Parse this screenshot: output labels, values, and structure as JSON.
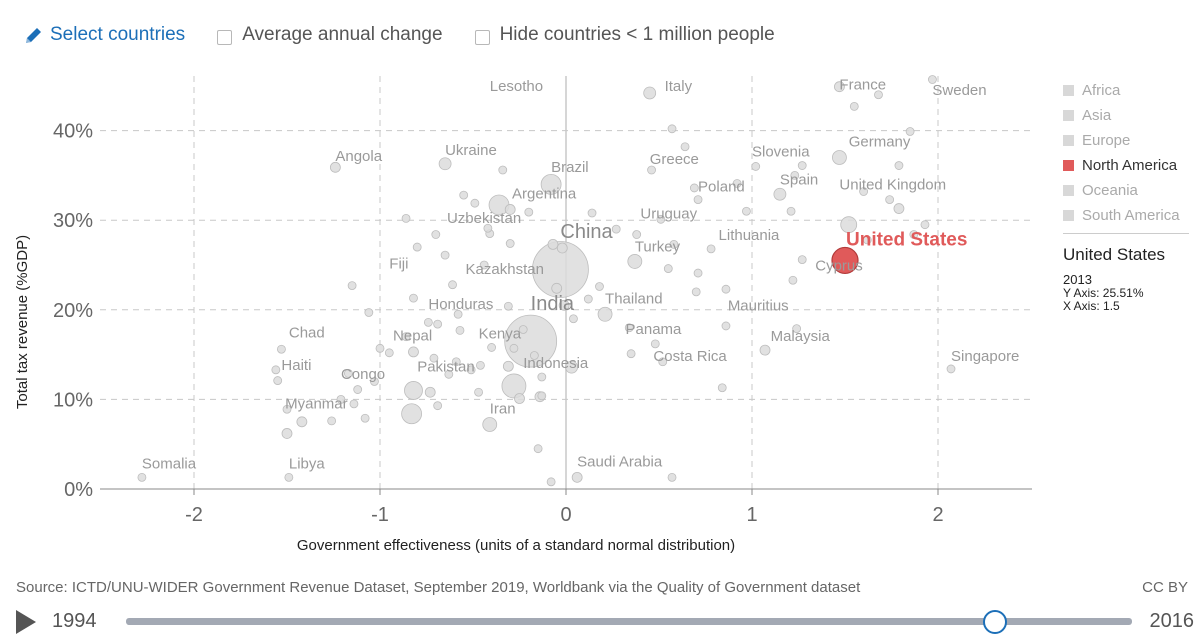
{
  "controls": {
    "select_countries": "Select countries",
    "avg_change": "Average annual change",
    "hide_small": "Hide countries < 1 million people"
  },
  "chart_data": {
    "type": "scatter",
    "xlabel": "Government effectiveness (units of a standard normal distribution)",
    "ylabel": "Total tax revenue (%GDP)",
    "xlim": [
      -2.5,
      2.5
    ],
    "ylim": [
      0,
      46
    ],
    "xticks": [
      -2,
      -1,
      0,
      1,
      2
    ],
    "xtick_labels": [
      "-2",
      "-1",
      "0",
      "1",
      "2"
    ],
    "yticks": [
      0,
      10,
      20,
      30,
      40
    ],
    "ytick_labels": [
      "0%",
      "10%",
      "20%",
      "30%",
      "40%"
    ],
    "highlight": {
      "name": "United States",
      "x": 1.5,
      "y": 25.51,
      "r": 13,
      "color": "#e05a5a"
    },
    "labels": [
      {
        "t": "Lesotho",
        "x": -0.41,
        "y": 44.4
      },
      {
        "t": "Italy",
        "x": 0.53,
        "y": 44.4
      },
      {
        "t": "France",
        "x": 1.47,
        "y": 44.6
      },
      {
        "t": "Sweden",
        "x": 1.97,
        "y": 44.0
      },
      {
        "t": "Germany",
        "x": 1.52,
        "y": 38.2
      },
      {
        "t": "Angola",
        "x": -1.24,
        "y": 36.6
      },
      {
        "t": "Ukraine",
        "x": -0.65,
        "y": 37.3
      },
      {
        "t": "Greece",
        "x": 0.45,
        "y": 36.3
      },
      {
        "t": "Slovenia",
        "x": 1.0,
        "y": 37.1
      },
      {
        "t": "Brazil",
        "x": -0.08,
        "y": 35.4
      },
      {
        "t": "Spain",
        "x": 1.15,
        "y": 34.0
      },
      {
        "t": "United Kingdom",
        "x": 1.47,
        "y": 33.4
      },
      {
        "t": "Poland",
        "x": 0.71,
        "y": 33.2
      },
      {
        "t": "Argentina",
        "x": -0.29,
        "y": 32.4
      },
      {
        "t": "Uruguay",
        "x": 0.4,
        "y": 30.2
      },
      {
        "t": "Uzbekistan",
        "x": -0.64,
        "y": 29.7
      },
      {
        "t": "China",
        "x": -0.03,
        "y": 28.0
      },
      {
        "t": "Lithuania",
        "x": 0.82,
        "y": 27.8
      },
      {
        "t": "Turkey",
        "x": 0.37,
        "y": 26.5
      },
      {
        "t": "Cyprus",
        "x": 1.34,
        "y": 24.4
      },
      {
        "t": "Fiji",
        "x": -0.95,
        "y": 24.6
      },
      {
        "t": "Kazakhstan",
        "x": -0.54,
        "y": 24.0
      },
      {
        "t": "Thailand",
        "x": 0.21,
        "y": 20.7
      },
      {
        "t": "Honduras",
        "x": -0.74,
        "y": 20.1
      },
      {
        "t": "India",
        "x": -0.19,
        "y": 20.0
      },
      {
        "t": "Mauritius",
        "x": 0.87,
        "y": 19.9
      },
      {
        "t": "Panama",
        "x": 0.32,
        "y": 17.3
      },
      {
        "t": "Chad",
        "x": -1.49,
        "y": 16.9
      },
      {
        "t": "Nepal",
        "x": -0.93,
        "y": 16.6
      },
      {
        "t": "Kenya",
        "x": -0.47,
        "y": 16.8
      },
      {
        "t": "Malaysia",
        "x": 1.1,
        "y": 16.5
      },
      {
        "t": "Costa Rica",
        "x": 0.47,
        "y": 14.3
      },
      {
        "t": "Singapore",
        "x": 2.07,
        "y": 14.3
      },
      {
        "t": "Haiti",
        "x": -1.53,
        "y": 13.3
      },
      {
        "t": "Indonesia",
        "x": -0.23,
        "y": 13.5
      },
      {
        "t": "Pakistan",
        "x": -0.8,
        "y": 13.1
      },
      {
        "t": "Congo",
        "x": -1.21,
        "y": 12.3
      },
      {
        "t": "Myanmar",
        "x": -1.51,
        "y": 9.0
      },
      {
        "t": "Iran",
        "x": -0.41,
        "y": 8.4
      },
      {
        "t": "Somalia",
        "x": -2.28,
        "y": 2.3
      },
      {
        "t": "Libya",
        "x": -1.49,
        "y": 2.3
      },
      {
        "t": "Saudi Arabia",
        "x": 0.06,
        "y": 2.5
      }
    ],
    "points": [
      [
        -0.03,
        24.5,
        28
      ],
      [
        -0.19,
        16.5,
        26
      ],
      [
        -0.08,
        34.0,
        10
      ],
      [
        -0.36,
        31.7,
        10
      ],
      [
        0.37,
        25.4,
        7
      ],
      [
        -0.28,
        11.5,
        12
      ],
      [
        -0.82,
        11.0,
        9
      ],
      [
        -0.83,
        8.4,
        10
      ],
      [
        -0.41,
        7.2,
        7
      ],
      [
        0.21,
        19.5,
        7
      ],
      [
        1.47,
        37.0,
        7
      ],
      [
        1.47,
        44.9,
        5
      ],
      [
        0.45,
        44.2,
        6
      ],
      [
        1.52,
        29.5,
        8
      ],
      [
        1.15,
        32.9,
        6
      ],
      [
        -0.65,
        36.3,
        6
      ],
      [
        -1.24,
        35.9,
        5
      ],
      [
        1.07,
        15.5,
        5
      ],
      [
        -0.31,
        20.4,
        4
      ],
      [
        -0.3,
        31.2,
        5
      ],
      [
        1.97,
        45.7,
        4
      ],
      [
        1.85,
        39.9,
        4
      ],
      [
        1.79,
        36.1,
        4
      ],
      [
        1.55,
        42.7,
        4
      ],
      [
        1.68,
        44.0,
        4
      ],
      [
        1.74,
        32.3,
        4
      ],
      [
        1.79,
        31.3,
        5
      ],
      [
        1.23,
        35.0,
        4
      ],
      [
        1.02,
        36.0,
        4
      ],
      [
        0.92,
        34.1,
        4
      ],
      [
        0.69,
        33.6,
        4
      ],
      [
        0.71,
        32.3,
        4
      ],
      [
        0.97,
        31.0,
        4
      ],
      [
        1.21,
        31.0,
        4
      ],
      [
        0.78,
        26.8,
        4
      ],
      [
        0.58,
        27.3,
        4
      ],
      [
        0.27,
        29.0,
        4
      ],
      [
        0.38,
        28.4,
        4
      ],
      [
        0.51,
        30.1,
        4
      ],
      [
        0.46,
        35.6,
        4
      ],
      [
        0.64,
        38.2,
        4
      ],
      [
        0.57,
        40.2,
        4
      ],
      [
        1.27,
        36.1,
        4
      ],
      [
        1.6,
        33.2,
        4
      ],
      [
        1.93,
        29.5,
        4
      ],
      [
        -0.07,
        27.3,
        5
      ],
      [
        -0.02,
        26.9,
        5
      ],
      [
        -0.05,
        22.4,
        5
      ],
      [
        -0.01,
        20.5,
        5
      ],
      [
        0.04,
        19.0,
        4
      ],
      [
        0.12,
        21.2,
        4
      ],
      [
        0.03,
        13.6,
        6
      ],
      [
        -0.14,
        10.3,
        5
      ],
      [
        -0.25,
        10.1,
        5
      ],
      [
        -0.31,
        13.7,
        5
      ],
      [
        -0.4,
        15.8,
        4
      ],
      [
        -0.57,
        17.7,
        4
      ],
      [
        -0.58,
        19.5,
        4
      ],
      [
        -0.69,
        18.4,
        4
      ],
      [
        -0.74,
        18.6,
        4
      ],
      [
        -0.61,
        22.8,
        4
      ],
      [
        -0.44,
        25.0,
        4
      ],
      [
        -0.41,
        28.5,
        4
      ],
      [
        -0.42,
        29.1,
        4
      ],
      [
        -0.49,
        31.9,
        4
      ],
      [
        -0.55,
        32.8,
        4
      ],
      [
        -0.34,
        35.6,
        4
      ],
      [
        -0.2,
        30.9,
        4
      ],
      [
        -0.65,
        26.1,
        4
      ],
      [
        -0.7,
        28.4,
        4
      ],
      [
        -0.8,
        27.0,
        4
      ],
      [
        -0.86,
        30.2,
        4
      ],
      [
        -0.82,
        21.3,
        4
      ],
      [
        -0.82,
        15.3,
        5
      ],
      [
        -0.95,
        15.2,
        4
      ],
      [
        -1.0,
        15.7,
        4
      ],
      [
        -1.06,
        19.7,
        4
      ],
      [
        -1.03,
        12.0,
        4
      ],
      [
        -1.12,
        11.1,
        4
      ],
      [
        -1.17,
        12.9,
        4
      ],
      [
        -1.21,
        10.0,
        4
      ],
      [
        -1.14,
        9.5,
        4
      ],
      [
        -1.26,
        7.6,
        4
      ],
      [
        -1.42,
        7.5,
        5
      ],
      [
        -1.5,
        6.2,
        5
      ],
      [
        -1.5,
        8.9,
        4
      ],
      [
        -1.56,
        13.3,
        4
      ],
      [
        -1.53,
        15.6,
        4
      ],
      [
        -1.55,
        12.1,
        4
      ],
      [
        -1.08,
        7.9,
        4
      ],
      [
        -0.86,
        17.0,
        4
      ],
      [
        -0.71,
        14.6,
        4
      ],
      [
        -0.73,
        10.8,
        5
      ],
      [
        -0.69,
        9.3,
        4
      ],
      [
        -0.63,
        12.8,
        4
      ],
      [
        -0.59,
        14.2,
        4
      ],
      [
        -0.51,
        13.3,
        4
      ],
      [
        -0.46,
        13.8,
        4
      ],
      [
        -0.47,
        10.8,
        4
      ],
      [
        -0.28,
        15.7,
        4
      ],
      [
        -0.13,
        12.5,
        4
      ],
      [
        -0.17,
        14.9,
        4
      ],
      [
        -0.23,
        17.8,
        4
      ],
      [
        -0.13,
        10.4,
        4
      ],
      [
        0.18,
        22.6,
        4
      ],
      [
        0.34,
        18.0,
        4
      ],
      [
        0.48,
        16.2,
        4
      ],
      [
        0.52,
        14.2,
        4
      ],
      [
        0.35,
        15.1,
        4
      ],
      [
        0.55,
        24.6,
        4
      ],
      [
        0.71,
        24.1,
        4
      ],
      [
        0.7,
        22.0,
        4
      ],
      [
        0.86,
        22.3,
        4
      ],
      [
        0.86,
        18.2,
        4
      ],
      [
        1.24,
        17.9,
        4
      ],
      [
        0.84,
        11.3,
        4
      ],
      [
        0.57,
        1.3,
        4
      ],
      [
        0.06,
        1.3,
        5
      ],
      [
        -0.08,
        0.8,
        4
      ],
      [
        -2.28,
        1.3,
        4
      ],
      [
        -1.49,
        1.3,
        4
      ],
      [
        -0.15,
        4.5,
        4
      ],
      [
        1.22,
        23.3,
        4
      ],
      [
        1.27,
        25.6,
        4
      ],
      [
        2.07,
        13.4,
        4
      ],
      [
        1.87,
        28.4,
        4
      ],
      [
        1.62,
        27.8,
        4
      ],
      [
        0.14,
        30.8,
        4
      ],
      [
        -1.15,
        22.7,
        4
      ],
      [
        -0.3,
        27.4,
        4
      ]
    ]
  },
  "legend": {
    "items": [
      {
        "label": "Africa",
        "active": false
      },
      {
        "label": "Asia",
        "active": false
      },
      {
        "label": "Europe",
        "active": false
      },
      {
        "label": "North America",
        "active": true
      },
      {
        "label": "Oceania",
        "active": false
      },
      {
        "label": "South America",
        "active": false
      }
    ]
  },
  "info": {
    "country": "United States",
    "year": "2013",
    "y_line": "Y Axis: 25.51%",
    "x_line": "X Axis: 1.5"
  },
  "footer": {
    "source": "Source: ICTD/UNU-WIDER Government Revenue Dataset, September 2019, Worldbank via the Quality of Government dataset",
    "license": "CC BY"
  },
  "timeline": {
    "start_year": "1994",
    "end_year": "2016",
    "current_year": 2013
  },
  "colors": {
    "highlight": "#e05a5a",
    "point_fill": "#d9d9d9",
    "link": "#1c6fb8"
  }
}
